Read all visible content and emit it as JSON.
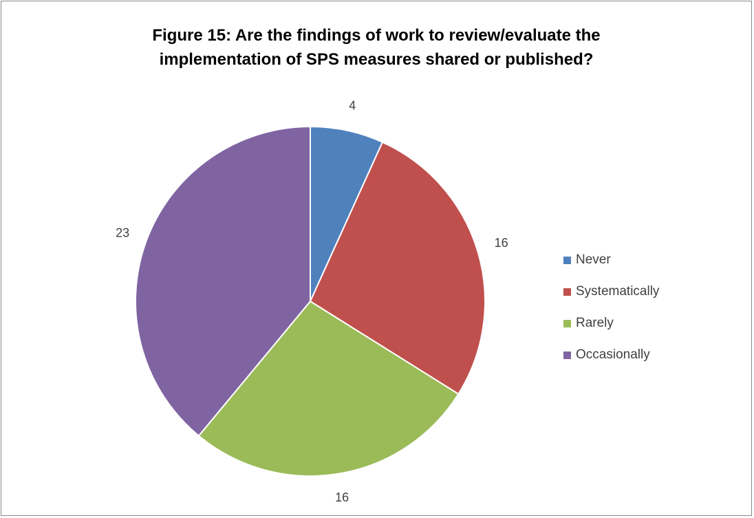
{
  "chart_data": {
    "type": "pie",
    "title": "Figure 15: Are the findings of work to review/evaluate the\nimplementation of SPS measures shared or published?",
    "categories": [
      "Never",
      "Systematically",
      "Rarely",
      "Occasionally"
    ],
    "values": [
      4,
      16,
      16,
      23
    ],
    "colors": [
      "#4F81BD",
      "#C0504D",
      "#9BBB59",
      "#8064A2"
    ],
    "data_labels": [
      "4",
      "16",
      "16",
      "23"
    ],
    "legend_position": "right",
    "start_angle": "12 o'clock",
    "direction": "clockwise"
  }
}
